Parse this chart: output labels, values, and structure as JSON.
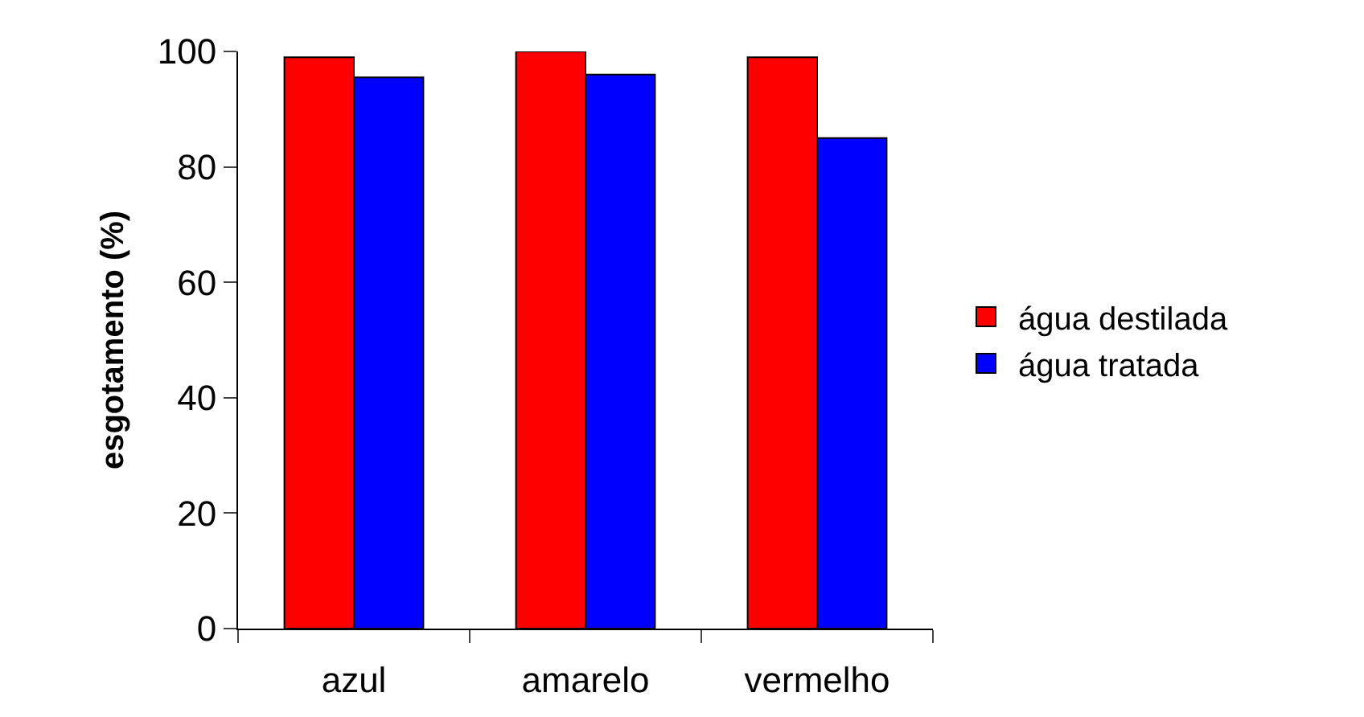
{
  "chart_data": {
    "type": "bar",
    "ylabel": "esgotamento (%)",
    "categories": [
      "azul",
      "amarelo",
      "vermelho"
    ],
    "series": [
      {
        "name": "água destilada",
        "color": "#ff0000",
        "values": [
          99,
          100,
          99
        ]
      },
      {
        "name": "água tratada",
        "color": "#0000ff",
        "values": [
          95.5,
          96,
          85
        ]
      }
    ],
    "ylim": [
      0,
      100
    ],
    "yticks": [
      0,
      20,
      40,
      60,
      80,
      100
    ],
    "legend": "right"
  }
}
